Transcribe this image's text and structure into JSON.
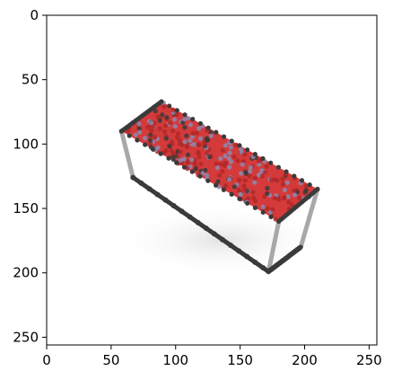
{
  "chart_data": {
    "type": "scatter",
    "title": "",
    "xlabel": "",
    "ylabel": "",
    "xlim": [
      0,
      256
    ],
    "ylim": [
      256,
      0
    ],
    "y_inverted": true,
    "grid": false,
    "legend": "none",
    "x_ticks": [
      0,
      50,
      100,
      150,
      200,
      250
    ],
    "y_ticks": [
      0,
      50,
      100,
      150,
      200,
      250
    ],
    "x_tick_labels": [
      "0",
      "50",
      "100",
      "150",
      "200",
      "250"
    ],
    "y_tick_labels": [
      "0",
      "50",
      "100",
      "150",
      "200",
      "250"
    ],
    "colors": {
      "background": "#ffffff",
      "table_top": "#d43a3a",
      "legs": "#a8a8a8",
      "frame_points": "#3a3a3a",
      "blue_points": "#8c8ab0"
    },
    "image_content": {
      "object": "table",
      "table_top_corners": [
        [
          58,
          90
        ],
        [
          89,
          67
        ],
        [
          210,
          135
        ],
        [
          180,
          160
        ]
      ],
      "leg_bottom_corners": [
        [
          67,
          126
        ],
        [
          172,
          199
        ],
        [
          197,
          180
        ]
      ],
      "leg_top_corners": [
        [
          58,
          90
        ],
        [
          180,
          160
        ],
        [
          210,
          135
        ]
      ]
    }
  }
}
